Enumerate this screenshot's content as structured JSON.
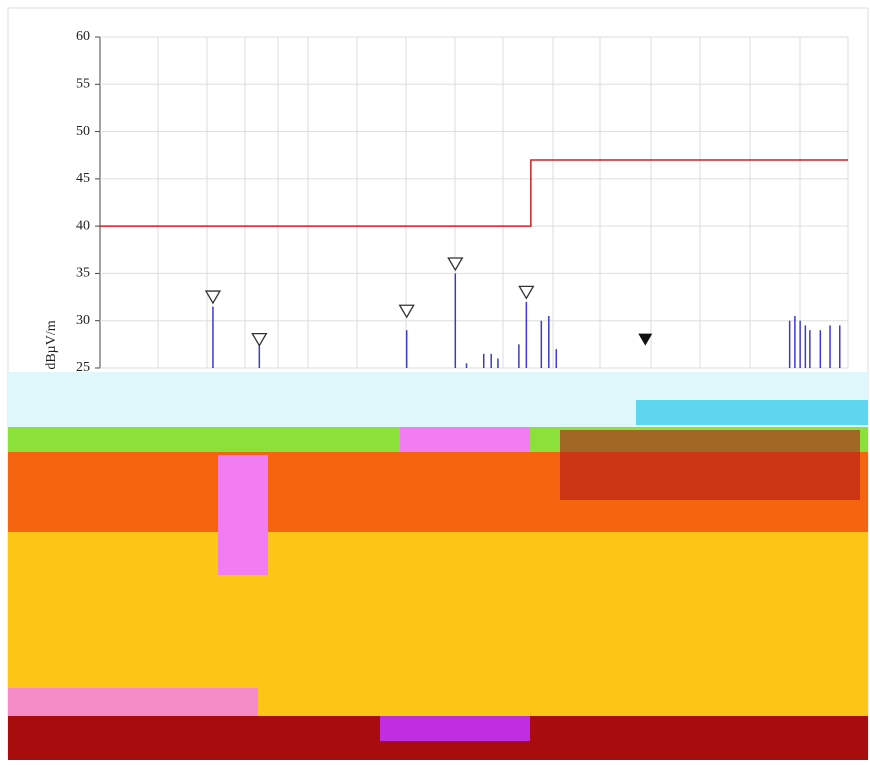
{
  "chart_data": {
    "type": "line",
    "y_label": "dBµV/m",
    "xlim": [
      0,
      100
    ],
    "ylim": [
      25,
      60
    ],
    "yticks": [
      25,
      30,
      35,
      40,
      45,
      50,
      55,
      60
    ],
    "grid": true,
    "series": [
      {
        "color": "#d02020",
        "kind": "line",
        "x": [
          0,
          57.6,
          57.6,
          100
        ],
        "values": [
          40,
          40,
          47,
          47
        ]
      },
      {
        "color": "#3a3acc",
        "kind": "spikes",
        "x": [
          15.1,
          21.3,
          41.0,
          47.5,
          49.0,
          51.3,
          52.3,
          53.2,
          56.0,
          57.0,
          59.0,
          60.0,
          61.0,
          92.2,
          92.9,
          93.6,
          94.3,
          94.9,
          96.3,
          97.6,
          98.9
        ],
        "values": [
          31.5,
          27.5,
          29,
          35,
          25.5,
          26.5,
          26.5,
          26,
          27.5,
          32,
          30,
          30.5,
          27,
          30,
          30.5,
          30,
          29.5,
          29,
          29,
          29.5,
          29.5
        ]
      },
      {
        "color": "#333333",
        "kind": "open-marker",
        "x": [
          15.1,
          21.3,
          41.0,
          47.5,
          57.0
        ],
        "values": [
          32.5,
          28,
          31,
          36,
          33
        ]
      },
      {
        "color": "#111111",
        "kind": "filled-marker",
        "x": [
          72.9
        ],
        "values": [
          28
        ]
      }
    ]
  }
}
